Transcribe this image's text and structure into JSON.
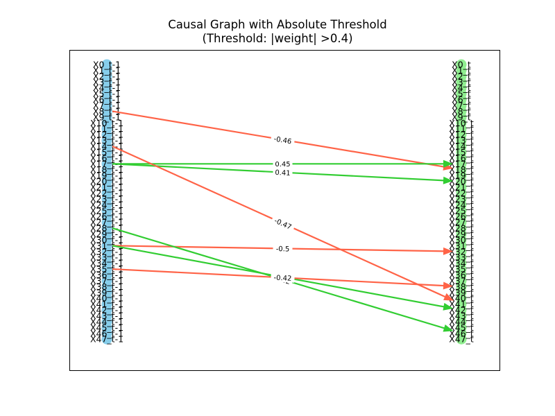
{
  "title": {
    "line1": "Causal Graph with Absolute Threshold",
    "line2": "(Threshold: |weight| >0.4)"
  },
  "colors": {
    "positive_edge": "#32cd32",
    "negative_edge": "#ff6347",
    "lagged_node": "#87ceeb",
    "current_node": "#90ee90",
    "frame": "#000000"
  },
  "nodes": {
    "lagged": [
      "X0_t-1",
      "X1_t-1",
      "X2_t-1",
      "X3_t-1",
      "X4_t-1",
      "X5_t-1",
      "X6_t-1",
      "X7_t-1",
      "X8_t-1",
      "X9_t-1",
      "X10_t-1",
      "X11_t-1",
      "X12_t-1",
      "X13_t-1",
      "X14_t-1",
      "X15_t-1",
      "X16_t-1",
      "X17_t-1",
      "X18_t-1",
      "X19_t-1",
      "X20_t-1",
      "X21_t-1",
      "X22_t-1",
      "X23_t-1",
      "X24_t-1",
      "X25_t-1",
      "X26_t-1",
      "X27_t-1",
      "X28_t-1",
      "X29_t-1",
      "X30_t-1",
      "X31_t-1",
      "X32_t-1",
      "X33_t-1",
      "X34_t-1",
      "X35_t-1",
      "X36_t-1",
      "X37_t-1",
      "X38_t-1",
      "X39_t-1",
      "X40_t-1",
      "X41_t-1",
      "X42_t-1",
      "X43_t-1",
      "X44_t-1",
      "X45_t-1",
      "X46_t-1",
      "X47_t-1"
    ],
    "current": [
      "X0_t",
      "X1_t",
      "X2_t",
      "X3_t",
      "X4_t",
      "X5_t",
      "X6_t",
      "X7_t",
      "X8_t",
      "X9_t",
      "X10_t",
      "X11_t",
      "X12_t",
      "X13_t",
      "X14_t",
      "X15_t",
      "X16_t",
      "X17_t",
      "X18_t",
      "X19_t",
      "X20_t",
      "X21_t",
      "X22_t",
      "X23_t",
      "X24_t",
      "X25_t",
      "X26_t",
      "X27_t",
      "X28_t",
      "X29_t",
      "X30_t",
      "X31_t",
      "X32_t",
      "X33_t",
      "X34_t",
      "X35_t",
      "X36_t",
      "X37_t",
      "X38_t",
      "X39_t",
      "X40_t",
      "X41_t",
      "X42_t",
      "X43_t",
      "X44_t",
      "X45_t",
      "X46_t",
      "X47_t"
    ]
  },
  "edges": [
    {
      "from": "X8_t-1",
      "to": "X18_t",
      "weight": -0.46,
      "label": "-0.46"
    },
    {
      "from": "X17_t-1",
      "to": "X17_t",
      "weight": 0.45,
      "label": "0.45"
    },
    {
      "from": "X17_t-1",
      "to": "X20_t",
      "weight": 0.41,
      "label": "0.41"
    },
    {
      "from": "X14_t-1",
      "to": "X41_t",
      "weight": -0.47,
      "label": "-0.47"
    },
    {
      "from": "X31_t-1",
      "to": "X32_t",
      "weight": -0.5,
      "label": "-0.5"
    },
    {
      "from": "X28_t-1",
      "to": "X46_t",
      "weight": 0.42,
      "label": "0.42"
    },
    {
      "from": "X31_t-1",
      "to": "X42_t",
      "weight": 0.42,
      "label": "0.42"
    },
    {
      "from": "X35_t-1",
      "to": "X38_t",
      "weight": -0.42,
      "label": "-0.42"
    }
  ]
}
